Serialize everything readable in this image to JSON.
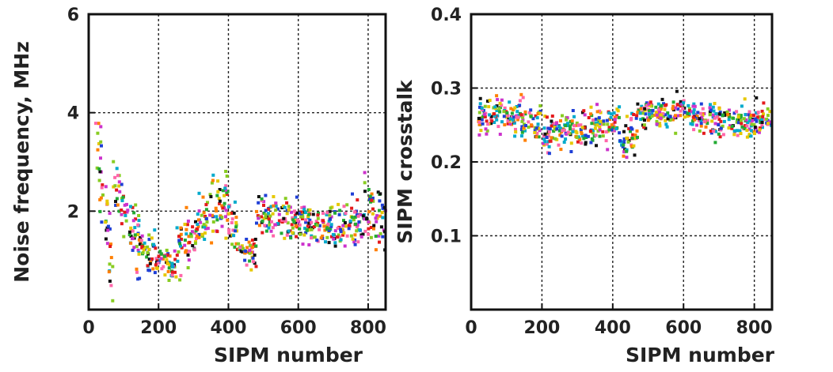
{
  "chart_data": [
    {
      "type": "scatter",
      "title": "",
      "xlabel": "SIPM number",
      "ylabel": "Noise frequency, MHz",
      "xlim": [
        0,
        850
      ],
      "ylim": [
        0,
        6
      ],
      "xticks": [
        0,
        200,
        400,
        600,
        800
      ],
      "yticks": [
        2,
        4,
        6
      ],
      "xtick_labels": [
        "0",
        "200",
        "400",
        "600",
        "800"
      ],
      "ytick_labels": [
        "2",
        "4",
        "6"
      ],
      "grid": true,
      "legend": "none",
      "colors": [
        "#e41a1c",
        "#1f3fd6",
        "#22aa33",
        "#ff7f00",
        "#cc33cc",
        "#111111",
        "#e6c800",
        "#00aacc",
        "#88cc22",
        "#ff66aa"
      ],
      "segments": [
        {
          "x": [
            20,
            70
          ],
          "y": [
            3.3,
            0.9
          ],
          "spread": 0.45
        },
        {
          "x": [
            70,
            150
          ],
          "y": [
            2.6,
            1.2
          ],
          "spread": 0.35
        },
        {
          "x": [
            150,
            190
          ],
          "y": [
            1.3,
            1.2
          ],
          "spread": 0.2
        },
        {
          "x": [
            190,
            250
          ],
          "y": [
            1.0,
            0.9
          ],
          "spread": 0.15
        },
        {
          "x": [
            250,
            330
          ],
          "y": [
            1.3,
            1.7
          ],
          "spread": 0.3
        },
        {
          "x": [
            330,
            400
          ],
          "y": [
            1.8,
            2.3
          ],
          "spread": 0.35
        },
        {
          "x": [
            400,
            430
          ],
          "y": [
            1.9,
            1.4
          ],
          "spread": 0.25
        },
        {
          "x": [
            430,
            480
          ],
          "y": [
            1.2,
            1.1
          ],
          "spread": 0.15
        },
        {
          "x": [
            480,
            700
          ],
          "y": [
            1.9,
            1.7
          ],
          "spread": 0.2
        },
        {
          "x": [
            700,
            790
          ],
          "y": [
            1.7,
            1.8
          ],
          "spread": 0.2
        },
        {
          "x": [
            790,
            850
          ],
          "y": [
            2.2,
            1.7
          ],
          "spread": 0.35
        }
      ]
    },
    {
      "type": "scatter",
      "title": "",
      "xlabel": "SIPM number",
      "ylabel": "SIPM crosstalk",
      "xlim": [
        0,
        850
      ],
      "ylim": [
        0,
        0.4
      ],
      "xticks": [
        0,
        200,
        400,
        600,
        800
      ],
      "yticks": [
        0.1,
        0.2,
        0.3,
        0.4
      ],
      "xtick_labels": [
        "0",
        "200",
        "400",
        "600",
        "800"
      ],
      "ytick_labels": [
        "0.1",
        "0.2",
        "0.3",
        "0.4"
      ],
      "grid": true,
      "legend": "none",
      "colors": [
        "#e41a1c",
        "#1f3fd6",
        "#22aa33",
        "#ff7f00",
        "#cc33cc",
        "#111111",
        "#e6c800",
        "#00aacc",
        "#88cc22",
        "#ff66aa"
      ],
      "segments": [
        {
          "x": [
            20,
            140
          ],
          "y": [
            0.26,
            0.265
          ],
          "spread": 0.012
        },
        {
          "x": [
            140,
            220
          ],
          "y": [
            0.265,
            0.24
          ],
          "spread": 0.015
        },
        {
          "x": [
            220,
            330
          ],
          "y": [
            0.24,
            0.245
          ],
          "spread": 0.012
        },
        {
          "x": [
            330,
            420
          ],
          "y": [
            0.25,
            0.255
          ],
          "spread": 0.012
        },
        {
          "x": [
            420,
            470
          ],
          "y": [
            0.23,
            0.245
          ],
          "spread": 0.015
        },
        {
          "x": [
            470,
            620
          ],
          "y": [
            0.265,
            0.265
          ],
          "spread": 0.01
        },
        {
          "x": [
            620,
            790
          ],
          "y": [
            0.26,
            0.255
          ],
          "spread": 0.01
        },
        {
          "x": [
            790,
            850
          ],
          "y": [
            0.25,
            0.26
          ],
          "spread": 0.012
        }
      ]
    }
  ]
}
